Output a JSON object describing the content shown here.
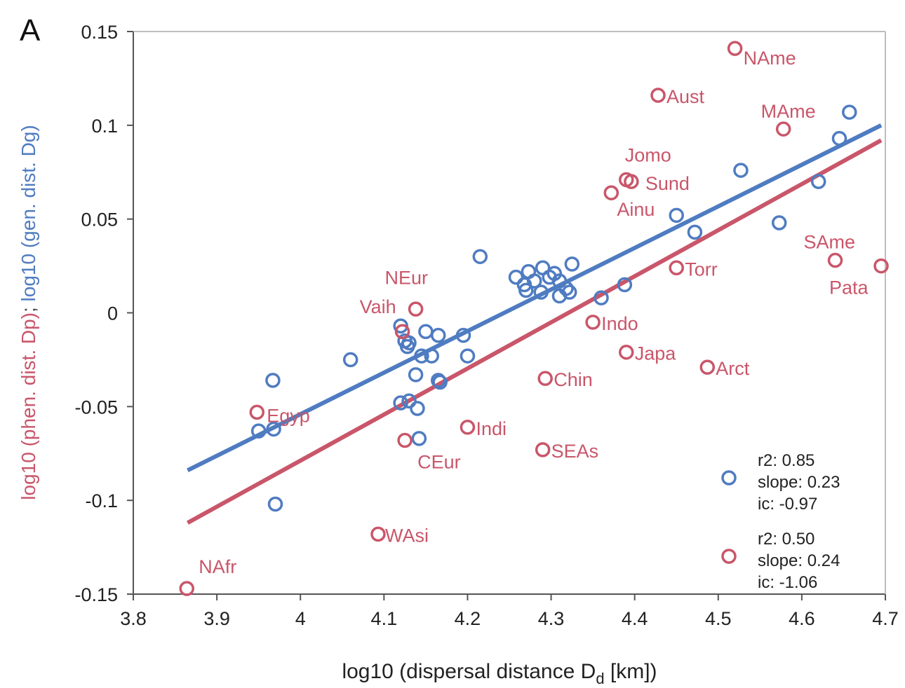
{
  "chart_data": {
    "type": "scatter",
    "panel_label": "A",
    "xlabel_main": "log10 (dispersal distance D",
    "xlabel_sub": "d",
    "xlabel_tail": " [km])",
    "ylabel_part1": "log10 (phen. dist. Dp)",
    "ylabel_sep": "; ",
    "ylabel_part2": "log10 (gen. dist. Dg)",
    "xlim": [
      3.8,
      4.7
    ],
    "ylim": [
      -0.15,
      0.15
    ],
    "xticks": [
      3.8,
      3.9,
      4.0,
      4.1,
      4.2,
      4.3,
      4.4,
      4.5,
      4.6,
      4.7
    ],
    "xtick_labels": [
      "3.8",
      "3.9",
      "4",
      "4.1",
      "4.2",
      "4.3",
      "4.4",
      "4.5",
      "4.6",
      "4.7"
    ],
    "yticks": [
      0.15,
      0.1,
      0.05,
      0,
      -0.05,
      -0.1,
      -0.15
    ],
    "ytick_labels": [
      "0.15",
      "0.1",
      "0.05",
      "0",
      "-0.05",
      "-0.1",
      "-0.15"
    ],
    "grid": false,
    "legend_position": "bottom-right",
    "series": [
      {
        "color": "#4f7cc1",
        "fit": {
          "x": [
            3.865,
            4.695
          ],
          "y": [
            -0.084,
            0.1
          ]
        },
        "stats": [
          "r2: 0.85",
          "slope: 0.23",
          "ic: -0.97"
        ],
        "points": [
          {
            "x": 3.967,
            "y": -0.036
          },
          {
            "x": 3.95,
            "y": -0.063
          },
          {
            "x": 3.968,
            "y": -0.062
          },
          {
            "x": 3.97,
            "y": -0.102
          },
          {
            "x": 4.06,
            "y": -0.025
          },
          {
            "x": 4.12,
            "y": -0.007
          },
          {
            "x": 4.125,
            "y": -0.015
          },
          {
            "x": 4.13,
            "y": -0.016
          },
          {
            "x": 4.128,
            "y": -0.018
          },
          {
            "x": 4.15,
            "y": -0.01
          },
          {
            "x": 4.165,
            "y": -0.012
          },
          {
            "x": 4.145,
            "y": -0.023
          },
          {
            "x": 4.157,
            "y": -0.023
          },
          {
            "x": 4.138,
            "y": -0.033
          },
          {
            "x": 4.165,
            "y": -0.036
          },
          {
            "x": 4.167,
            "y": -0.037
          },
          {
            "x": 4.12,
            "y": -0.048
          },
          {
            "x": 4.13,
            "y": -0.047
          },
          {
            "x": 4.14,
            "y": -0.051
          },
          {
            "x": 4.142,
            "y": -0.067
          },
          {
            "x": 4.195,
            "y": -0.012
          },
          {
            "x": 4.2,
            "y": -0.023
          },
          {
            "x": 4.215,
            "y": 0.03
          },
          {
            "x": 4.258,
            "y": 0.019
          },
          {
            "x": 4.268,
            "y": 0.015
          },
          {
            "x": 4.273,
            "y": 0.022
          },
          {
            "x": 4.28,
            "y": 0.017
          },
          {
            "x": 4.29,
            "y": 0.024
          },
          {
            "x": 4.298,
            "y": 0.019
          },
          {
            "x": 4.304,
            "y": 0.021
          },
          {
            "x": 4.31,
            "y": 0.017
          },
          {
            "x": 4.318,
            "y": 0.013
          },
          {
            "x": 4.325,
            "y": 0.026
          },
          {
            "x": 4.27,
            "y": 0.012
          },
          {
            "x": 4.288,
            "y": 0.011
          },
          {
            "x": 4.31,
            "y": 0.009
          },
          {
            "x": 4.322,
            "y": 0.011
          },
          {
            "x": 4.36,
            "y": 0.008
          },
          {
            "x": 4.388,
            "y": 0.015
          },
          {
            "x": 4.45,
            "y": 0.052
          },
          {
            "x": 4.472,
            "y": 0.043
          },
          {
            "x": 4.527,
            "y": 0.076
          },
          {
            "x": 4.573,
            "y": 0.048
          },
          {
            "x": 4.62,
            "y": 0.07
          },
          {
            "x": 4.645,
            "y": 0.093
          },
          {
            "x": 4.657,
            "y": 0.107
          }
        ]
      },
      {
        "color": "#c9566a",
        "fit": {
          "x": [
            3.865,
            4.695
          ],
          "y": [
            -0.112,
            0.092
          ]
        },
        "stats": [
          "r2: 0.50",
          "slope: 0.24",
          "ic: -1.06"
        ],
        "points": [
          {
            "x": 4.52,
            "y": 0.141,
            "label": "NAme"
          },
          {
            "x": 4.428,
            "y": 0.116,
            "label": "Aust"
          },
          {
            "x": 4.578,
            "y": 0.098,
            "label": "MAme"
          },
          {
            "x": 4.39,
            "y": 0.071,
            "label": "Jomo"
          },
          {
            "x": 4.396,
            "y": 0.07,
            "label": "Sund"
          },
          {
            "x": 4.372,
            "y": 0.064,
            "label": "Ainu"
          },
          {
            "x": 4.64,
            "y": 0.028,
            "label": "SAme"
          },
          {
            "x": 4.695,
            "y": 0.025,
            "label": "Pata"
          },
          {
            "x": 4.45,
            "y": 0.024,
            "label": "Torr"
          },
          {
            "x": 4.138,
            "y": 0.002,
            "label": "Vaih"
          },
          {
            "x": 4.122,
            "y": -0.01,
            "label": "NEur"
          },
          {
            "x": 4.35,
            "y": -0.005,
            "label": "Indo"
          },
          {
            "x": 4.39,
            "y": -0.021,
            "label": "Japa"
          },
          {
            "x": 4.487,
            "y": -0.029,
            "label": "Arct"
          },
          {
            "x": 4.293,
            "y": -0.035,
            "label": "Chin"
          },
          {
            "x": 3.948,
            "y": -0.053,
            "label": "Egyp"
          },
          {
            "x": 4.2,
            "y": -0.061,
            "label": "Indi"
          },
          {
            "x": 4.125,
            "y": -0.068,
            "label": "CEur"
          },
          {
            "x": 4.29,
            "y": -0.073,
            "label": "SEAs"
          },
          {
            "x": 4.093,
            "y": -0.118,
            "label": "WAsi"
          },
          {
            "x": 3.864,
            "y": -0.147,
            "label": "NAfr"
          }
        ]
      }
    ]
  }
}
